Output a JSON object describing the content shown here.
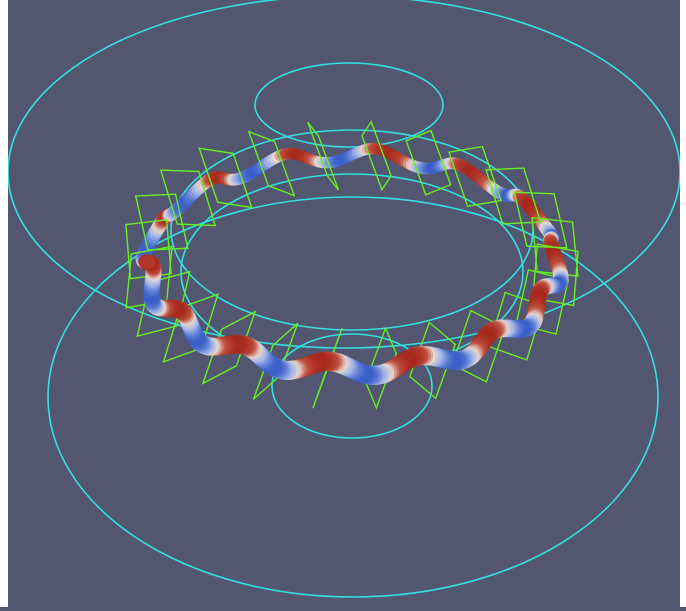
{
  "scene": {
    "background_color": "#525670",
    "coil_color": "#33e0e0",
    "frame_color": "#66ee22",
    "torus_colormap": [
      "#3a5fc9",
      "#9fb3e8",
      "#e8d9d0",
      "#c05040",
      "#a82a1e"
    ],
    "torus_periods": 14,
    "frame_count": 24,
    "coil_count": 4,
    "text": []
  }
}
